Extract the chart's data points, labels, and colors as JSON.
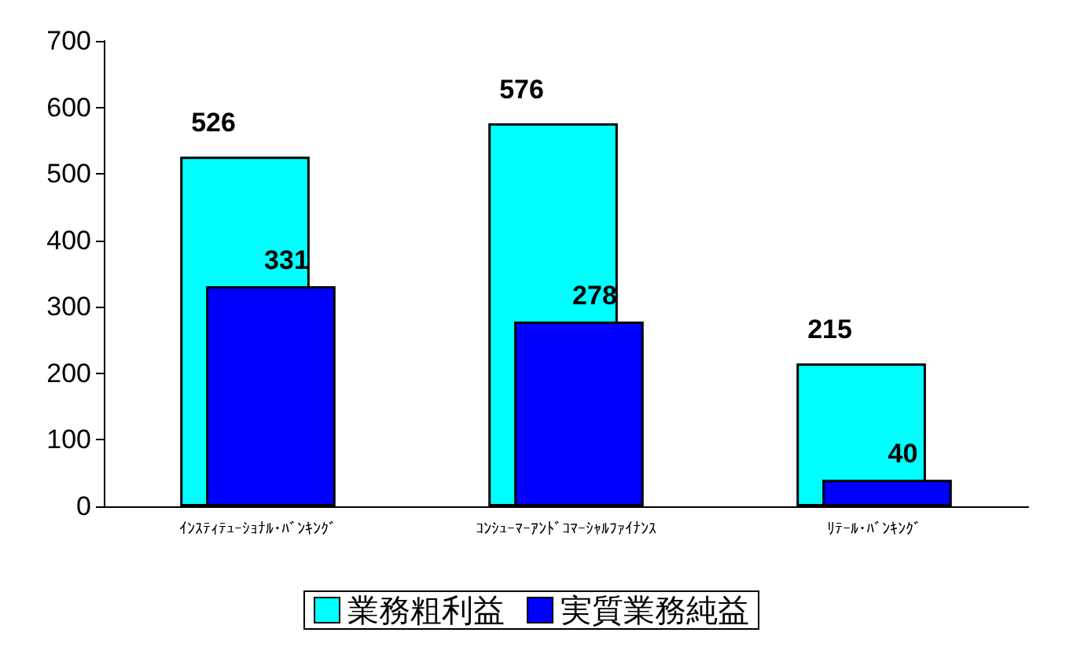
{
  "chart_data": {
    "type": "bar",
    "categories": [
      "ｲﾝｽﾃｨﾃｭｰｼｮﾅﾙ･ﾊﾞﾝｷﾝｸﾞ",
      "ｺﾝｼｭｰﾏｰｱﾝﾄﾞｺﾏｰｼｬﾙﾌｧｲﾅﾝｽ",
      "ﾘﾃｰﾙ･ﾊﾞﾝｷﾝｸﾞ"
    ],
    "series": [
      {
        "name": "業務粗利益",
        "color": "#00ffff",
        "values": [
          526,
          576,
          215
        ]
      },
      {
        "name": "実質業務純益",
        "color": "#0000ff",
        "values": [
          331,
          278,
          40
        ]
      }
    ],
    "ylim": [
      0,
      700
    ],
    "yticks": [
      0,
      100,
      200,
      300,
      400,
      500,
      600,
      700
    ],
    "data_labels": true,
    "legend": "bottom",
    "grid": false
  }
}
